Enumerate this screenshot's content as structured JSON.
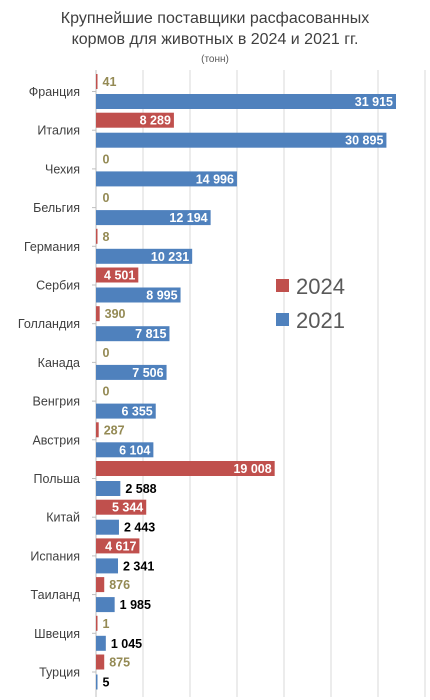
{
  "chart_data": {
    "type": "bar",
    "orientation": "horizontal",
    "title_line1": "Крупнейшие поставщики расфасованных",
    "title_line2": "кормов для животных в 2024 и 2021 гг.",
    "subtitle": "(тонн)",
    "categories": [
      "Франция",
      "Италия",
      "Чехия",
      "Бельгия",
      "Германия",
      "Сербия",
      "Голландия",
      "Канада",
      "Венгрия",
      "Австрия",
      "Польша",
      "Китай",
      "Испания",
      "Таиланд",
      "Швеция",
      "Турция"
    ],
    "series": [
      {
        "name": "2024",
        "color": "#c0504d",
        "values": [
          41,
          8289,
          0,
          0,
          8,
          4501,
          390,
          0,
          0,
          287,
          19008,
          5344,
          4617,
          876,
          1,
          875
        ],
        "labels": [
          "41",
          "8 289",
          "0",
          "0",
          "8",
          "4 501",
          "390",
          "0",
          "0",
          "287",
          "19 008",
          "5 344",
          "4 617",
          "876",
          "1",
          "875"
        ]
      },
      {
        "name": "2021",
        "color": "#4f81bd",
        "values": [
          31915,
          30895,
          14996,
          12194,
          10231,
          8995,
          7815,
          7506,
          6355,
          6104,
          2588,
          2443,
          2341,
          1985,
          1045,
          5
        ],
        "labels": [
          "31 915",
          "30 895",
          "14 996",
          "12 194",
          "10 231",
          "8 995",
          "7 815",
          "7 506",
          "6 355",
          "6 104",
          "2 588",
          "2 443",
          "2 341",
          "1 985",
          "1 045",
          "5"
        ]
      }
    ],
    "label_colors": {
      "small_2024": "#948a54",
      "inside_bar": "#ffffff",
      "outside_bar": "#000000"
    },
    "xlim": [
      0,
      35000
    ],
    "grid": true,
    "legend_position": "right-middle"
  }
}
